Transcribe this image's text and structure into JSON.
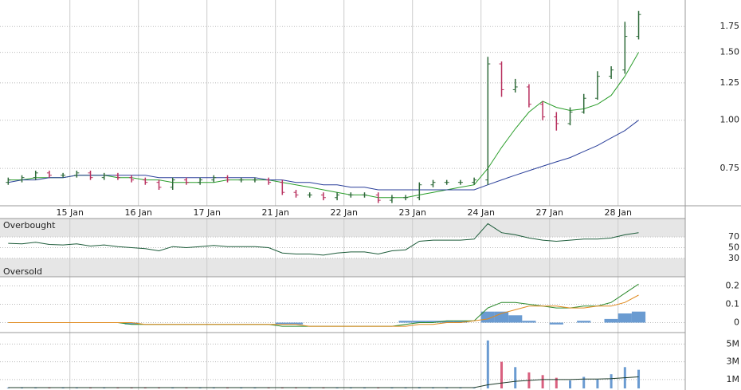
{
  "chart_data": [
    {
      "type": "ohlc",
      "log": true,
      "up_color": "#2f6b3a",
      "down_color": "#b8305e",
      "x": [
        0,
        1,
        2,
        3,
        4,
        5,
        6,
        7,
        8,
        9,
        10,
        11,
        12,
        13,
        14,
        15,
        16,
        17,
        18,
        19,
        20,
        21,
        22,
        23,
        24,
        25,
        26,
        27,
        28,
        29,
        30,
        31,
        32,
        33,
        34,
        35,
        36,
        37,
        38,
        39,
        40,
        41,
        42,
        43,
        44,
        45,
        46
      ],
      "open": [
        0.69,
        0.7,
        0.71,
        0.73,
        0.72,
        0.72,
        0.73,
        0.71,
        0.72,
        0.71,
        0.7,
        0.69,
        0.67,
        0.7,
        0.69,
        0.7,
        0.71,
        0.7,
        0.7,
        0.7,
        0.69,
        0.65,
        0.64,
        0.64,
        0.63,
        0.64,
        0.64,
        0.64,
        0.62,
        0.63,
        0.63,
        0.68,
        0.69,
        0.69,
        0.69,
        0.7,
        1.4,
        1.2,
        1.22,
        1.1,
        1.02,
        0.98,
        1.05,
        1.14,
        1.3,
        1.35,
        1.65
      ],
      "high": [
        0.71,
        0.72,
        0.74,
        0.74,
        0.73,
        0.74,
        0.74,
        0.73,
        0.73,
        0.72,
        0.71,
        0.7,
        0.71,
        0.71,
        0.71,
        0.72,
        0.72,
        0.71,
        0.71,
        0.71,
        0.7,
        0.66,
        0.65,
        0.65,
        0.65,
        0.65,
        0.65,
        0.65,
        0.64,
        0.64,
        0.69,
        0.7,
        0.7,
        0.7,
        0.71,
        1.46,
        1.42,
        1.28,
        1.24,
        1.12,
        1.05,
        1.08,
        1.17,
        1.34,
        1.38,
        1.8,
        1.92
      ],
      "low": [
        0.68,
        0.69,
        0.7,
        0.71,
        0.71,
        0.71,
        0.7,
        0.7,
        0.7,
        0.69,
        0.68,
        0.66,
        0.66,
        0.68,
        0.68,
        0.69,
        0.69,
        0.69,
        0.69,
        0.68,
        0.64,
        0.63,
        0.63,
        0.62,
        0.62,
        0.63,
        0.63,
        0.61,
        0.61,
        0.62,
        0.62,
        0.67,
        0.68,
        0.68,
        0.68,
        0.68,
        1.15,
        1.18,
        1.08,
        1.0,
        0.94,
        0.97,
        1.04,
        1.13,
        1.28,
        1.32,
        1.62
      ],
      "close": [
        0.7,
        0.71,
        0.73,
        0.72,
        0.72,
        0.73,
        0.71,
        0.72,
        0.71,
        0.7,
        0.69,
        0.67,
        0.7,
        0.69,
        0.7,
        0.71,
        0.7,
        0.7,
        0.7,
        0.69,
        0.65,
        0.64,
        0.64,
        0.63,
        0.64,
        0.64,
        0.64,
        0.62,
        0.63,
        0.63,
        0.68,
        0.69,
        0.69,
        0.69,
        0.7,
        1.4,
        1.2,
        1.22,
        1.1,
        1.02,
        0.98,
        1.05,
        1.14,
        1.3,
        1.35,
        1.65,
        1.88
      ],
      "series": [
        {
          "color": "#2a9d2a",
          "values": [
            0.7,
            0.7,
            0.71,
            0.71,
            0.71,
            0.72,
            0.72,
            0.72,
            0.71,
            0.71,
            0.7,
            0.7,
            0.69,
            0.69,
            0.69,
            0.69,
            0.7,
            0.7,
            0.7,
            0.7,
            0.69,
            0.68,
            0.67,
            0.66,
            0.65,
            0.64,
            0.64,
            0.63,
            0.63,
            0.63,
            0.64,
            0.65,
            0.66,
            0.67,
            0.68,
            0.75,
            0.85,
            0.95,
            1.05,
            1.12,
            1.08,
            1.06,
            1.07,
            1.1,
            1.16,
            1.3,
            1.5
          ]
        },
        {
          "color": "#2a3f9a",
          "values": [
            0.69,
            0.7,
            0.7,
            0.71,
            0.71,
            0.72,
            0.72,
            0.72,
            0.72,
            0.72,
            0.72,
            0.71,
            0.71,
            0.71,
            0.71,
            0.71,
            0.71,
            0.71,
            0.71,
            0.7,
            0.7,
            0.69,
            0.69,
            0.68,
            0.68,
            0.67,
            0.67,
            0.66,
            0.66,
            0.66,
            0.66,
            0.66,
            0.66,
            0.66,
            0.66,
            0.68,
            0.7,
            0.72,
            0.74,
            0.76,
            0.78,
            0.8,
            0.83,
            0.86,
            0.9,
            0.94,
            1.0
          ]
        }
      ],
      "xlim": [
        -0.6,
        49.4
      ],
      "xticks": [
        {
          "value": 4.5,
          "label": "15 Jan"
        },
        {
          "value": 9.5,
          "label": "16 Jan"
        },
        {
          "value": 14.5,
          "label": "17 Jan"
        },
        {
          "value": 19.5,
          "label": "21 Jan"
        },
        {
          "value": 24.5,
          "label": "22 Jan"
        },
        {
          "value": 29.5,
          "label": "23 Jan"
        },
        {
          "value": 34.5,
          "label": "24 Jan"
        },
        {
          "value": 39.5,
          "label": "27 Jan"
        },
        {
          "value": 44.5,
          "label": "28 Jan"
        }
      ],
      "ylim": [
        0.6,
        2.05
      ],
      "yticks": [
        {
          "value": 0.75,
          "label": "0.75"
        },
        {
          "value": 1.0,
          "label": "1.00"
        },
        {
          "value": 1.25,
          "label": "1.25"
        },
        {
          "value": 1.5,
          "label": "1.50"
        },
        {
          "value": 1.75,
          "label": "1.75"
        }
      ]
    },
    {
      "type": "line",
      "annotations": [
        "Overbought",
        "Oversold"
      ],
      "series": [
        {
          "color": "#1d5c3a",
          "values": [
            58,
            57,
            60,
            56,
            55,
            57,
            53,
            55,
            52,
            50,
            48,
            44,
            52,
            50,
            52,
            54,
            52,
            52,
            52,
            50,
            40,
            38,
            38,
            36,
            40,
            42,
            42,
            38,
            44,
            46,
            62,
            64,
            64,
            64,
            66,
            95,
            78,
            74,
            68,
            64,
            62,
            64,
            66,
            66,
            68,
            74,
            78
          ]
        }
      ],
      "ylim": [
        0,
        100
      ],
      "yticks": [
        30,
        50,
        70
      ]
    },
    {
      "type": "macd",
      "series": [
        {
          "color": "#2e8b2e",
          "values": [
            0,
            0,
            0,
            0,
            0,
            0,
            0,
            0,
            0,
            -0.01,
            -0.01,
            -0.01,
            -0.01,
            -0.01,
            -0.01,
            -0.01,
            -0.01,
            -0.01,
            -0.01,
            -0.01,
            -0.02,
            -0.02,
            -0.02,
            -0.02,
            -0.02,
            -0.02,
            -0.02,
            -0.02,
            -0.02,
            -0.01,
            0,
            0,
            0.01,
            0.01,
            0.01,
            0.08,
            0.11,
            0.11,
            0.1,
            0.09,
            0.08,
            0.08,
            0.09,
            0.09,
            0.11,
            0.16,
            0.21
          ]
        },
        {
          "color": "#e08a1e",
          "values": [
            0,
            0,
            0,
            0,
            0,
            0,
            0,
            0,
            0,
            0,
            -0.01,
            -0.01,
            -0.01,
            -0.01,
            -0.01,
            -0.01,
            -0.01,
            -0.01,
            -0.01,
            -0.01,
            -0.01,
            -0.01,
            -0.02,
            -0.02,
            -0.02,
            -0.02,
            -0.02,
            -0.02,
            -0.02,
            -0.02,
            -0.01,
            -0.01,
            0,
            0,
            0.01,
            0.02,
            0.05,
            0.07,
            0.09,
            0.09,
            0.09,
            0.08,
            0.08,
            0.09,
            0.09,
            0.11,
            0.15
          ]
        }
      ],
      "histogram": {
        "color": "#6a9bd1",
        "values": [
          0,
          0,
          0,
          0,
          0,
          0,
          0,
          0,
          0,
          -0.01,
          0,
          0,
          0,
          0,
          0,
          0,
          0,
          0,
          0,
          0,
          -0.01,
          -0.01,
          0,
          0,
          0,
          0,
          0,
          0,
          0,
          0.01,
          0.01,
          0.01,
          0.01,
          0.01,
          0,
          0.06,
          0.06,
          0.04,
          0.01,
          0,
          -0.01,
          0,
          0.01,
          0,
          0.02,
          0.05,
          0.06
        ]
      },
      "ylim": [
        -0.05,
        0.25
      ],
      "yticks": [
        0,
        0.1,
        0.2
      ]
    },
    {
      "type": "volume",
      "up_color": "#6a9bd1",
      "down_color": "#d9607f",
      "values": [
        80000,
        120000,
        60000,
        90000,
        70000,
        110000,
        60000,
        80000,
        50000,
        90000,
        70000,
        100000,
        60000,
        80000,
        50000,
        90000,
        60000,
        70000,
        80000,
        60000,
        120000,
        90000,
        70000,
        60000,
        80000,
        50000,
        90000,
        70000,
        60000,
        80000,
        150000,
        90000,
        70000,
        60000,
        80000,
        5400000,
        3000000,
        2400000,
        1800000,
        1500000,
        1200000,
        900000,
        1300000,
        1000000,
        1600000,
        2400000,
        2100000
      ],
      "series": [
        {
          "color": "#1d3b2a",
          "values": [
            90000,
            90000,
            90000,
            90000,
            90000,
            90000,
            90000,
            90000,
            90000,
            90000,
            90000,
            90000,
            90000,
            90000,
            90000,
            90000,
            90000,
            90000,
            90000,
            90000,
            90000,
            90000,
            90000,
            90000,
            90000,
            90000,
            90000,
            90000,
            90000,
            90000,
            90000,
            90000,
            90000,
            90000,
            90000,
            400000,
            600000,
            800000,
            900000,
            1000000,
            1000000,
            1000000,
            1050000,
            1050000,
            1100000,
            1200000,
            1300000
          ]
        }
      ],
      "ylim": [
        0,
        6200000
      ],
      "yticks": [
        {
          "value": 1000000,
          "label": "1M"
        },
        {
          "value": 3000000,
          "label": "3M"
        },
        {
          "value": 5000000,
          "label": "5M"
        }
      ]
    }
  ]
}
